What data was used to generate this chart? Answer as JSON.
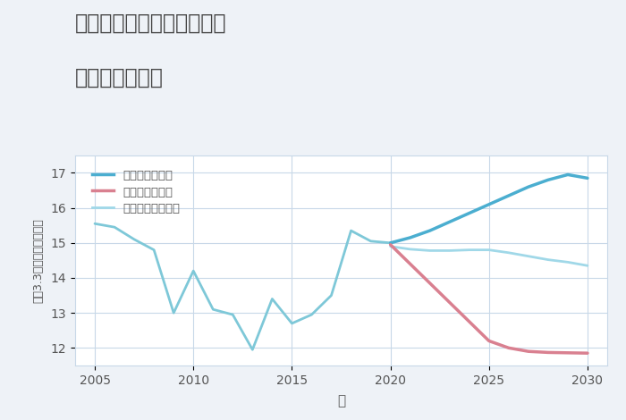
{
  "title_line1": "岐阜県羽島郡岐南町伏屋の",
  "title_line2": "土地の価格推移",
  "xlabel": "年",
  "ylabel": "坪（3.3㎡）単価（万円）",
  "background_color": "#eef2f7",
  "plot_bg_color": "#ffffff",
  "ylim": [
    11.5,
    17.5
  ],
  "xlim": [
    2004,
    2031
  ],
  "yticks": [
    12,
    13,
    14,
    15,
    16,
    17
  ],
  "xticks": [
    2005,
    2010,
    2015,
    2020,
    2025,
    2030
  ],
  "historical": {
    "years": [
      2005,
      2006,
      2007,
      2008,
      2009,
      2010,
      2011,
      2012,
      2013,
      2014,
      2015,
      2016,
      2017,
      2018,
      2019,
      2020
    ],
    "values": [
      15.55,
      15.45,
      15.1,
      14.8,
      13.0,
      14.2,
      13.1,
      12.95,
      11.95,
      13.4,
      12.7,
      12.95,
      13.5,
      15.35,
      15.05,
      15.0
    ],
    "color": "#7ec8d8",
    "linewidth": 2.0
  },
  "good_scenario": {
    "years": [
      2020,
      2021,
      2022,
      2023,
      2024,
      2025,
      2026,
      2027,
      2028,
      2029,
      2030
    ],
    "values": [
      15.0,
      15.15,
      15.35,
      15.6,
      15.85,
      16.1,
      16.35,
      16.6,
      16.8,
      16.95,
      16.85
    ],
    "color": "#4baed0",
    "linewidth": 2.5,
    "label": "グッドシナリオ"
  },
  "bad_scenario": {
    "years": [
      2020,
      2021,
      2022,
      2023,
      2024,
      2025,
      2026,
      2027,
      2028,
      2029,
      2030
    ],
    "values": [
      14.95,
      14.4,
      13.85,
      13.3,
      12.75,
      12.2,
      12.0,
      11.9,
      11.87,
      11.86,
      11.85
    ],
    "color": "#d98090",
    "linewidth": 2.5,
    "label": "バッドシナリオ"
  },
  "normal_scenario": {
    "years": [
      2020,
      2021,
      2022,
      2023,
      2024,
      2025,
      2026,
      2027,
      2028,
      2029,
      2030
    ],
    "values": [
      14.9,
      14.82,
      14.78,
      14.78,
      14.8,
      14.8,
      14.72,
      14.62,
      14.52,
      14.45,
      14.35
    ],
    "color": "#a0d8e8",
    "linewidth": 2.0,
    "label": "ノーマルシナリオ"
  }
}
